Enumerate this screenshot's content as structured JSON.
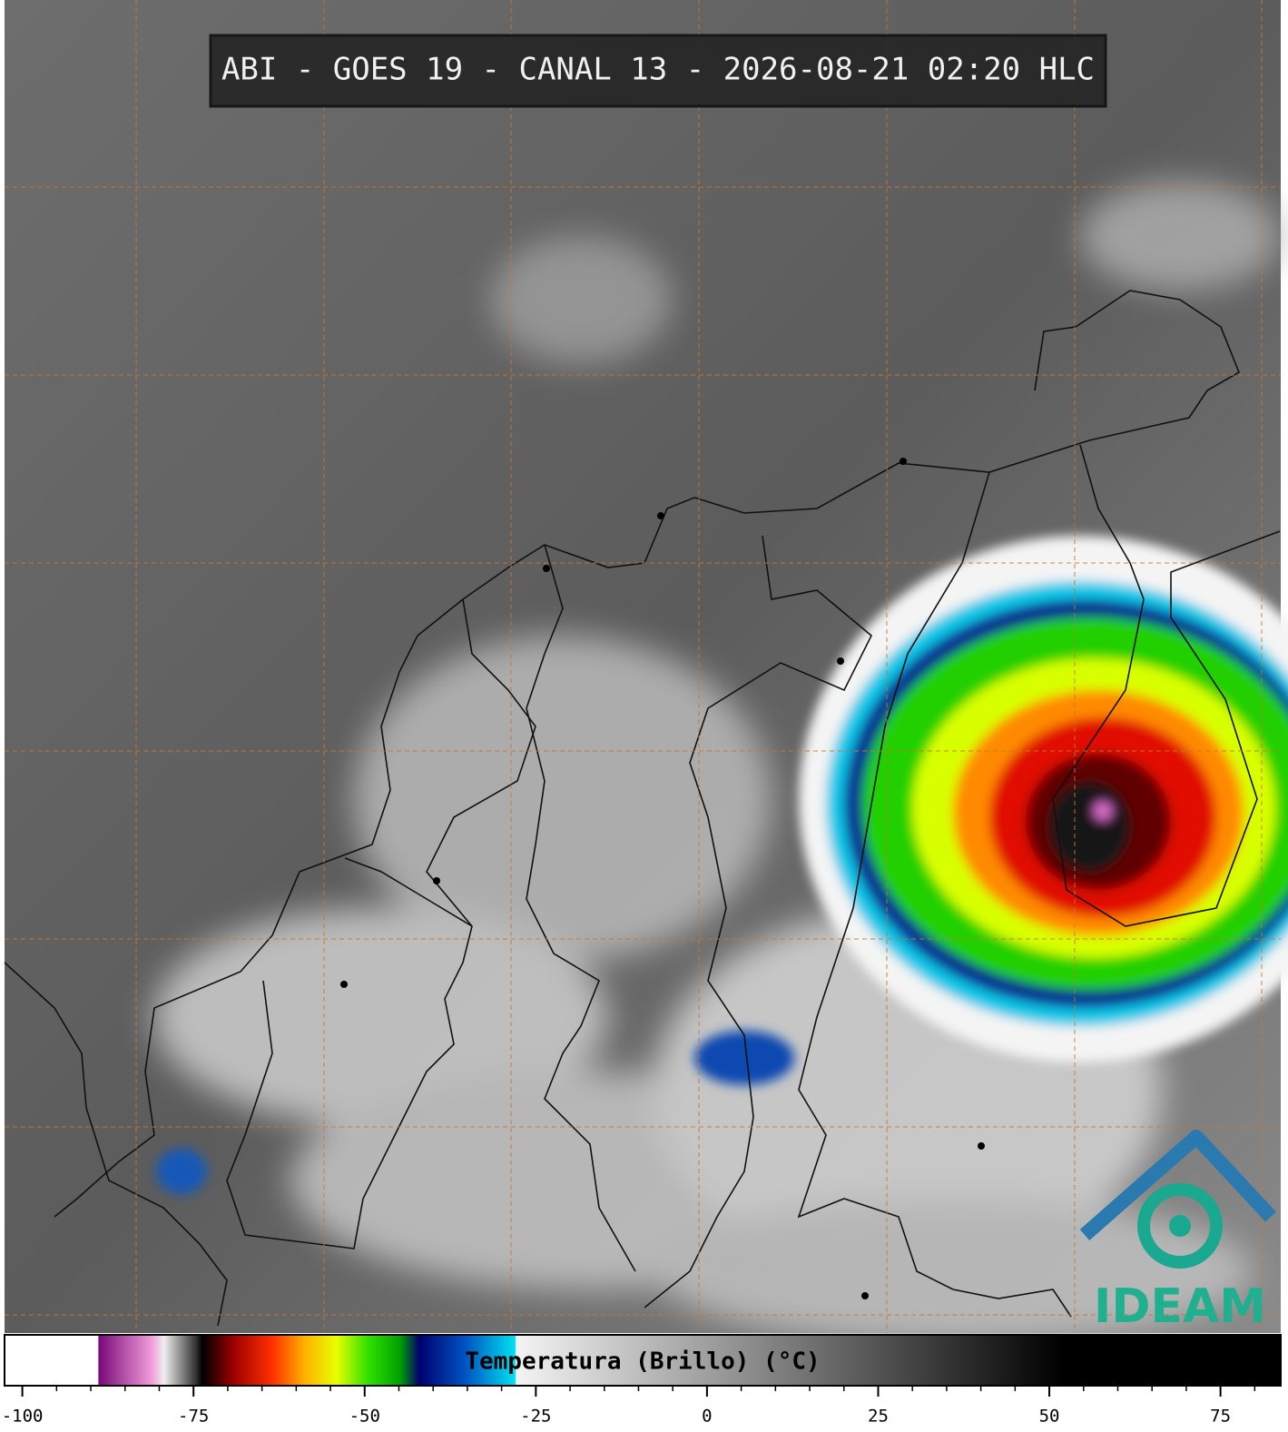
{
  "header": {
    "title": "ABI - GOES 19 - CANAL 13 - 2026-08-21 02:20 HLC"
  },
  "colorbar": {
    "label": "Temperatura (Brillo) (°C)",
    "lim": [
      -102.6,
      83.8
    ],
    "ticks": [
      -100,
      -75,
      -50,
      -25,
      0,
      25,
      50,
      75
    ]
  },
  "logo": {
    "text": "IDEAM"
  }
}
